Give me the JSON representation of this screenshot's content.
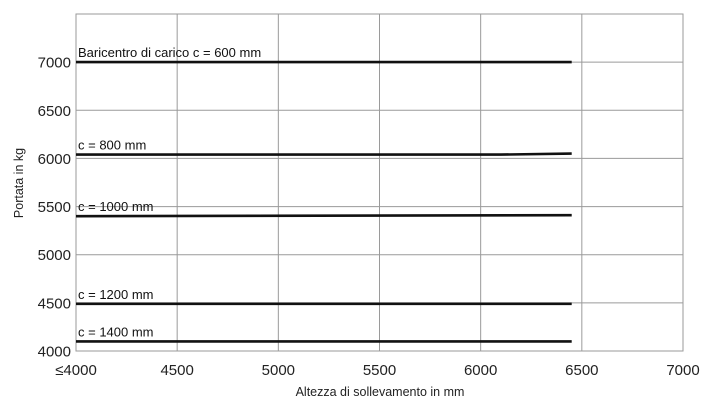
{
  "chart_data": {
    "type": "line",
    "title": "",
    "xlabel": "Altezza di sollevamento in mm",
    "ylabel": "Portata in kg",
    "xlim": [
      4000,
      7000
    ],
    "ylim": [
      4000,
      7500
    ],
    "x_ticks": [
      4000,
      4500,
      5000,
      5500,
      6000,
      6500,
      7000
    ],
    "x_tick_labels": [
      "≤4000",
      "4500",
      "5000",
      "5500",
      "6000",
      "6500",
      "7000"
    ],
    "y_ticks": [
      4000,
      4500,
      5000,
      5500,
      6000,
      6500,
      7000
    ],
    "y_tick_labels": [
      "4000",
      "4500",
      "5000",
      "5500",
      "6000",
      "6500",
      "7000"
    ],
    "grid": true,
    "series": [
      {
        "name": "Baricentro di carico c = 600 mm",
        "x": [
          4000,
          6450
        ],
        "y": [
          7000,
          7000
        ]
      },
      {
        "name": "c = 800 mm",
        "x": [
          4000,
          6100,
          6450
        ],
        "y": [
          6040,
          6040,
          6050
        ]
      },
      {
        "name": "c = 1000 mm",
        "x": [
          4000,
          6450
        ],
        "y": [
          5400,
          5410
        ]
      },
      {
        "name": "c = 1200 mm",
        "x": [
          4000,
          6450
        ],
        "y": [
          4490,
          4490
        ]
      },
      {
        "name": "c = 1400 mm",
        "x": [
          4000,
          6450
        ],
        "y": [
          4100,
          4100
        ]
      }
    ],
    "line_color": "#111111",
    "grid_color": "#9a9a9a"
  }
}
